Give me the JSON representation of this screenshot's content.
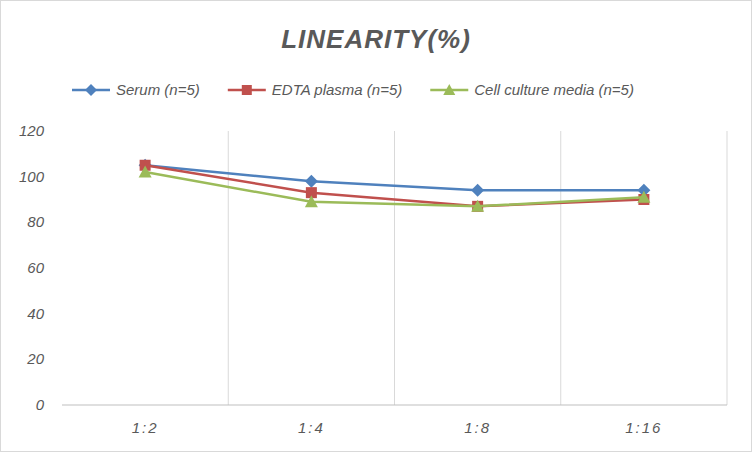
{
  "chart_data": {
    "type": "line",
    "title": "LINEARITY(%)",
    "categories": [
      "1:2",
      "1:4",
      "1:8",
      "1:16"
    ],
    "series": [
      {
        "name": "Serum (n=5)",
        "color": "#4f81bd",
        "marker": "diamond",
        "values": [
          105,
          98,
          94,
          94
        ]
      },
      {
        "name": "EDTA plasma (n=5)",
        "color": "#c0504d",
        "marker": "square",
        "values": [
          105,
          93,
          87,
          90
        ]
      },
      {
        "name": "Cell culture media (n=5)",
        "color": "#9bbb59",
        "marker": "triangle",
        "values": [
          102,
          89,
          87,
          91
        ]
      }
    ],
    "ylim": [
      0,
      120
    ],
    "yticks": [
      0,
      20,
      40,
      60,
      80,
      100,
      120
    ],
    "grid": true,
    "legend": "top"
  }
}
